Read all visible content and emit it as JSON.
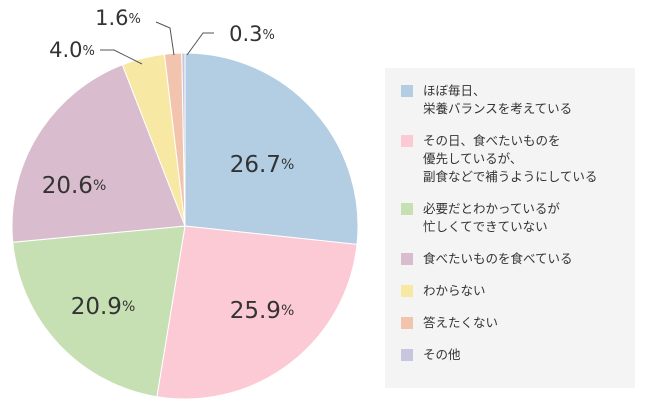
{
  "chart_data": {
    "type": "pie",
    "start": "12 o'clock",
    "direction": "clockwise",
    "legend_position": "right",
    "slices": [
      {
        "label": "ほぼ毎日、\n栄養バランスを考えている",
        "value": 26.7,
        "value_label": "26.7",
        "color": "#b3cde3"
      },
      {
        "label": "その日、食べたいものを\n優先しているが、\n副食などで補うようにしている",
        "value": 25.9,
        "value_label": "25.9",
        "color": "#fccad5"
      },
      {
        "label": "必要だとわかっているが\n忙しくてできていない",
        "value": 20.9,
        "value_label": "20.9",
        "color": "#c6e0b4"
      },
      {
        "label": "食べたいものを食べている",
        "value": 20.6,
        "value_label": "20.6",
        "color": "#d9bccd"
      },
      {
        "label": "わからない",
        "value": 4.0,
        "value_label": "4.0",
        "color": "#f7e8a4"
      },
      {
        "label": "答えたくない",
        "value": 1.6,
        "value_label": "1.6",
        "color": "#f3c4ad"
      },
      {
        "label": "その他",
        "value": 0.3,
        "value_label": "0.3",
        "color": "#c8c6de"
      }
    ],
    "percent_suffix": "%"
  }
}
